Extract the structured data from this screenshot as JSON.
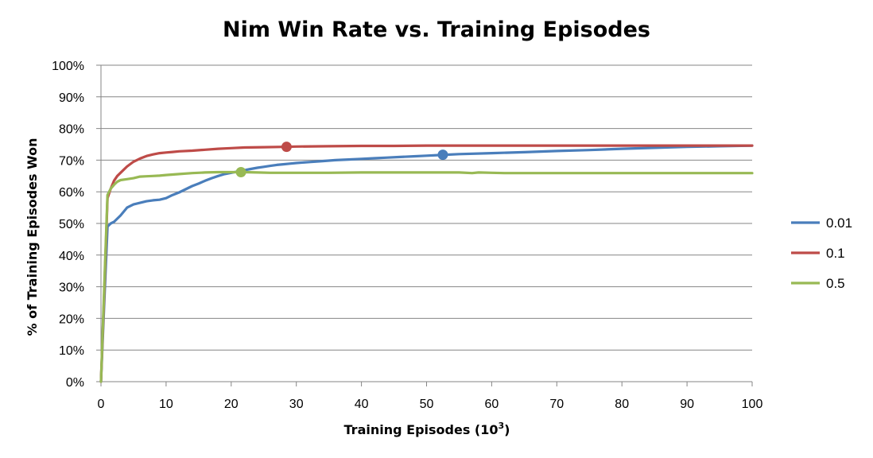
{
  "chart_data": {
    "type": "line",
    "title": "Nim Win Rate vs. Training Episodes",
    "xlabel": "Training Episodes (10",
    "xlabel_superscript": "3",
    "xlabel_suffix": ")",
    "ylabel": "% of Training Episodes Won",
    "xlim": [
      0,
      100
    ],
    "ylim": [
      0,
      100
    ],
    "x_ticks": [
      0,
      10,
      20,
      30,
      40,
      50,
      60,
      70,
      80,
      90,
      100
    ],
    "x_tick_labels": [
      "0",
      "10",
      "20",
      "30",
      "40",
      "50",
      "60",
      "70",
      "80",
      "90",
      "100"
    ],
    "y_ticks": [
      0,
      10,
      20,
      30,
      40,
      50,
      60,
      70,
      80,
      90,
      100
    ],
    "y_tick_labels": [
      "0%",
      "10%",
      "20%",
      "30%",
      "40%",
      "50%",
      "60%",
      "70%",
      "80%",
      "90%",
      "100%"
    ],
    "grid": true,
    "legend_position": "right",
    "series": [
      {
        "name": "0.01",
        "color": "#4a7ebb",
        "x": [
          0,
          0.5,
          1,
          1.5,
          2,
          3,
          4,
          5,
          6,
          7,
          8,
          9,
          10,
          11,
          12,
          13,
          14,
          15,
          16,
          17,
          18,
          19,
          20,
          21,
          22,
          23,
          24,
          25,
          26,
          27,
          28,
          29,
          30,
          32,
          34,
          36,
          38,
          40,
          42,
          44,
          46,
          48,
          50,
          52,
          55,
          60,
          65,
          70,
          75,
          80,
          85,
          90,
          95,
          100
        ],
        "y": [
          0,
          25,
          49,
          50,
          50.5,
          52.5,
          55,
          56,
          56.5,
          57,
          57.3,
          57.5,
          58,
          59,
          59.8,
          60.8,
          61.8,
          62.6,
          63.5,
          64.3,
          65,
          65.6,
          66,
          66.4,
          66.8,
          67.2,
          67.6,
          67.9,
          68.2,
          68.5,
          68.7,
          68.9,
          69.1,
          69.4,
          69.7,
          70,
          70.2,
          70.4,
          70.6,
          70.8,
          71,
          71.2,
          71.4,
          71.6,
          71.9,
          72.2,
          72.5,
          72.9,
          73.2,
          73.6,
          73.9,
          74.2,
          74.4,
          74.6
        ]
      },
      {
        "name": "0.1",
        "color": "#be4b48",
        "x": [
          0,
          0.5,
          1,
          1.5,
          2,
          2.5,
          3,
          4,
          5,
          6,
          7,
          8,
          9,
          10,
          11,
          12,
          14,
          16,
          18,
          20,
          22,
          25,
          28,
          30,
          35,
          40,
          45,
          50,
          55,
          60,
          70,
          80,
          90,
          100
        ],
        "y": [
          0,
          28,
          58,
          61,
          63.5,
          65,
          66,
          68,
          69.5,
          70.5,
          71.3,
          71.8,
          72.2,
          72.4,
          72.6,
          72.8,
          73,
          73.3,
          73.6,
          73.8,
          74,
          74.1,
          74.2,
          74.3,
          74.4,
          74.5,
          74.5,
          74.6,
          74.6,
          74.6,
          74.6,
          74.6,
          74.6,
          74.6
        ]
      },
      {
        "name": "0.5",
        "color": "#98b954",
        "x": [
          0,
          0.5,
          1,
          1.5,
          2,
          2.5,
          3,
          4,
          5,
          6,
          7,
          8,
          9,
          10,
          12,
          14,
          16,
          18,
          20,
          22,
          24,
          26,
          30,
          35,
          40,
          45,
          50,
          55,
          57,
          58,
          60,
          62,
          70,
          80,
          90,
          100
        ],
        "y": [
          0,
          30,
          59,
          61,
          62.2,
          63.2,
          63.7,
          64,
          64.3,
          64.8,
          64.9,
          65,
          65.1,
          65.3,
          65.6,
          65.9,
          66.1,
          66.2,
          66.2,
          66.2,
          66.1,
          66,
          66,
          66,
          66.1,
          66.1,
          66.1,
          66.1,
          65.9,
          66.1,
          66,
          65.9,
          65.9,
          65.9,
          65.9,
          65.9
        ]
      }
    ],
    "markers": [
      {
        "series": "0.01",
        "x": 52.5,
        "y": 71.7,
        "color": "#4a7ebb"
      },
      {
        "series": "0.1",
        "x": 28.5,
        "y": 74.2,
        "color": "#be4b48"
      },
      {
        "series": "0.5",
        "x": 21.5,
        "y": 66.2,
        "color": "#98b954"
      }
    ]
  }
}
